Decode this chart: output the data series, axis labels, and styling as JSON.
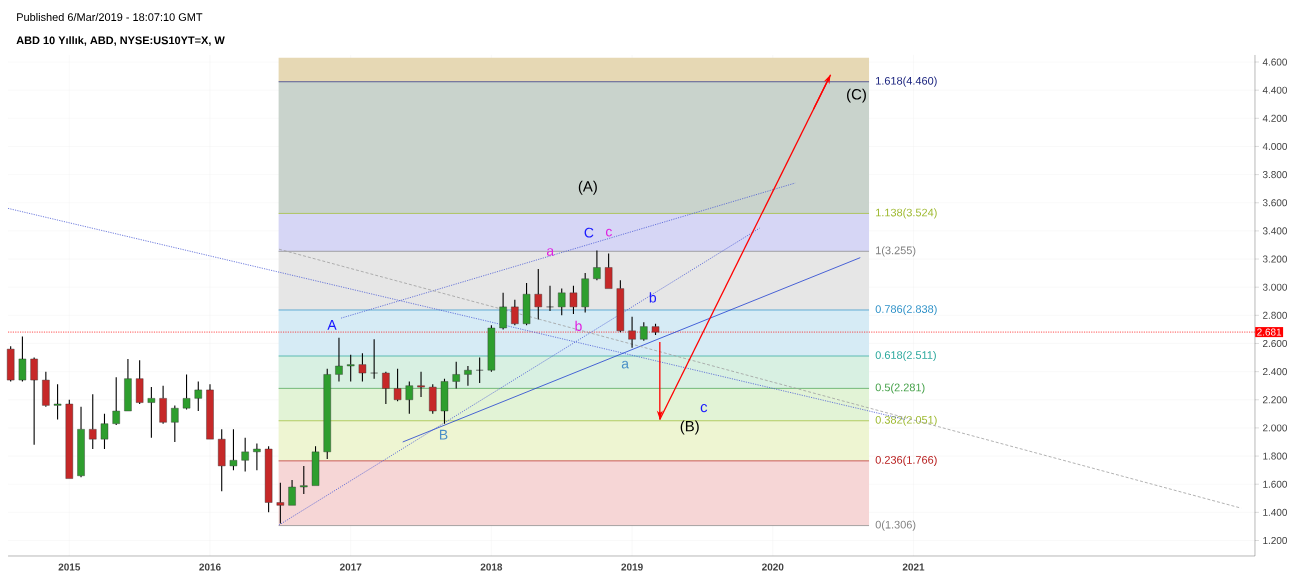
{
  "chart_data": {
    "type": "candlestick",
    "title": "ABD 10 Yıllık, ABD, NYSE:US10YT=X, W",
    "x": [
      "2014-08",
      "2014-09",
      "2014-10",
      "2014-11",
      "2014-12",
      "2015-01",
      "2015-02",
      "2015-03",
      "2015-04",
      "2015-05",
      "2015-06",
      "2015-07",
      "2015-08",
      "2015-09",
      "2015-10",
      "2015-11",
      "2015-12",
      "2016-01",
      "2016-02",
      "2016-03",
      "2016-04",
      "2016-05",
      "2016-06",
      "2016-07",
      "2016-08",
      "2016-09",
      "2016-10",
      "2016-11",
      "2016-12",
      "2017-01",
      "2017-02",
      "2017-03",
      "2017-04",
      "2017-05",
      "2017-06",
      "2017-07",
      "2017-08",
      "2017-09",
      "2017-10",
      "2017-11",
      "2017-12",
      "2018-01",
      "2018-02",
      "2018-03",
      "2018-04",
      "2018-05",
      "2018-06",
      "2018-07",
      "2018-08",
      "2018-09",
      "2018-10",
      "2018-11",
      "2018-12",
      "2019-01",
      "2019-02",
      "2019-03"
    ],
    "ohlc": [
      [
        2.56,
        2.58,
        2.33,
        2.34
      ],
      [
        2.34,
        2.65,
        2.33,
        2.49
      ],
      [
        2.49,
        2.5,
        1.88,
        2.34
      ],
      [
        2.34,
        2.4,
        2.15,
        2.16
      ],
      [
        2.16,
        2.31,
        2.06,
        2.17
      ],
      [
        2.17,
        2.2,
        1.64,
        1.64
      ],
      [
        1.66,
        2.15,
        1.65,
        1.99
      ],
      [
        1.99,
        2.24,
        1.85,
        1.92
      ],
      [
        1.92,
        2.1,
        1.85,
        2.03
      ],
      [
        2.03,
        2.36,
        2.02,
        2.12
      ],
      [
        2.12,
        2.49,
        2.12,
        2.35
      ],
      [
        2.35,
        2.48,
        2.17,
        2.18
      ],
      [
        2.18,
        2.29,
        1.93,
        2.21
      ],
      [
        2.21,
        2.3,
        2.03,
        2.04
      ],
      [
        2.04,
        2.16,
        1.9,
        2.14
      ],
      [
        2.14,
        2.38,
        2.13,
        2.21
      ],
      [
        2.21,
        2.33,
        2.12,
        2.27
      ],
      [
        2.27,
        2.31,
        1.92,
        1.92
      ],
      [
        1.92,
        1.99,
        1.55,
        1.73
      ],
      [
        1.73,
        1.99,
        1.7,
        1.77
      ],
      [
        1.77,
        1.93,
        1.69,
        1.83
      ],
      [
        1.83,
        1.89,
        1.7,
        1.85
      ],
      [
        1.85,
        1.87,
        1.4,
        1.47
      ],
      [
        1.47,
        1.61,
        1.32,
        1.45
      ],
      [
        1.45,
        1.63,
        1.45,
        1.58
      ],
      [
        1.58,
        1.73,
        1.53,
        1.59
      ],
      [
        1.59,
        1.87,
        1.59,
        1.83
      ],
      [
        1.83,
        2.42,
        1.78,
        2.38
      ],
      [
        2.38,
        2.64,
        2.33,
        2.44
      ],
      [
        2.44,
        2.52,
        2.33,
        2.45
      ],
      [
        2.45,
        2.53,
        2.33,
        2.39
      ],
      [
        2.39,
        2.63,
        2.35,
        2.39
      ],
      [
        2.39,
        2.4,
        2.17,
        2.28
      ],
      [
        2.28,
        2.42,
        2.19,
        2.2
      ],
      [
        2.2,
        2.33,
        2.1,
        2.3
      ],
      [
        2.3,
        2.4,
        2.22,
        2.29
      ],
      [
        2.29,
        2.31,
        2.1,
        2.12
      ],
      [
        2.12,
        2.35,
        2.03,
        2.33
      ],
      [
        2.33,
        2.47,
        2.28,
        2.38
      ],
      [
        2.38,
        2.44,
        2.3,
        2.41
      ],
      [
        2.41,
        2.5,
        2.32,
        2.41
      ],
      [
        2.41,
        2.73,
        2.4,
        2.71
      ],
      [
        2.71,
        2.96,
        2.7,
        2.86
      ],
      [
        2.86,
        2.91,
        2.73,
        2.74
      ],
      [
        2.74,
        3.03,
        2.73,
        2.95
      ],
      [
        2.95,
        3.13,
        2.77,
        2.86
      ],
      [
        2.86,
        3.01,
        2.83,
        2.86
      ],
      [
        2.86,
        2.99,
        2.8,
        2.96
      ],
      [
        2.96,
        3.01,
        2.81,
        2.86
      ],
      [
        2.86,
        3.1,
        2.82,
        3.06
      ],
      [
        3.06,
        3.26,
        3.05,
        3.14
      ],
      [
        3.14,
        3.24,
        2.99,
        2.99
      ],
      [
        2.99,
        3.05,
        2.68,
        2.69
      ],
      [
        2.69,
        2.79,
        2.57,
        2.63
      ],
      [
        2.63,
        2.75,
        2.62,
        2.72
      ],
      [
        2.72,
        2.74,
        2.66,
        2.68
      ]
    ],
    "series": [
      {
        "type": "line",
        "x": [
          "2014-07-26",
          "2020-12-09"
        ],
        "values": [
          3.56,
          2.06
        ],
        "color": "#4a5bd4",
        "line_style": "dotted"
      },
      {
        "type": "line",
        "x": [
          "2016-06-28",
          "2019-11-28"
        ],
        "values": [
          1.31,
          3.42
        ],
        "color": "#4a5bd4",
        "line_style": "dotted"
      },
      {
        "type": "line",
        "x": [
          "2016-12-06",
          "2020-02-28"
        ],
        "values": [
          2.78,
          3.74
        ],
        "color": "#4a5bd4",
        "line_style": "dotted"
      },
      {
        "type": "line",
        "x": [
          "2017-05-16",
          "2020-08-15"
        ],
        "values": [
          1.9,
          3.21
        ],
        "color": "#1f3fd0",
        "line_style": "solid"
      },
      {
        "type": "line",
        "x": [
          "2016-06-28",
          "2023-05-01"
        ],
        "values": [
          3.27,
          1.43
        ],
        "color": "#9e9e9e",
        "line_style": "dashed"
      },
      {
        "type": "line",
        "x": [
          "2019-03-14",
          "2019-03-14"
        ],
        "values": [
          2.61,
          2.06
        ],
        "color": "#ff0000",
        "line_style": "solid"
      },
      {
        "type": "line",
        "x": [
          "2019-03-14",
          "2020-05-30"
        ],
        "values": [
          2.06,
          4.51
        ],
        "color": "#ff0000",
        "line_style": "solid"
      }
    ],
    "xlim": [
      "2014-07-26",
      "2023-06-06"
    ],
    "xticks": [
      "2015",
      "2016",
      "2017",
      "2018",
      "2019",
      "2020",
      "2021"
    ],
    "ylim": [
      1.09,
      4.65
    ],
    "yticks": [
      {
        "value": 1.2,
        "label": "1.200"
      },
      {
        "value": 1.4,
        "label": "1.400"
      },
      {
        "value": 1.6,
        "label": "1.600"
      },
      {
        "value": 1.8,
        "label": "1.800"
      },
      {
        "value": 2.0,
        "label": "2.000"
      },
      {
        "value": 2.2,
        "label": "2.200"
      },
      {
        "value": 2.4,
        "label": "2.400"
      },
      {
        "value": 2.6,
        "label": "2.600"
      },
      {
        "value": 2.8,
        "label": "2.800"
      },
      {
        "value": 3.0,
        "label": "3.000"
      },
      {
        "value": 3.2,
        "label": "3.200"
      },
      {
        "value": 3.4,
        "label": "3.400"
      },
      {
        "value": 3.6,
        "label": "3.600"
      },
      {
        "value": 3.8,
        "label": "3.800"
      },
      {
        "value": 4.0,
        "label": "4.000"
      },
      {
        "value": 4.2,
        "label": "4.200"
      },
      {
        "value": 4.4,
        "label": "4.400"
      },
      {
        "value": 4.6,
        "label": "4.600"
      }
    ],
    "grid": true,
    "bands": [
      {
        "axis": "y",
        "from": 1.306,
        "to": 1.766,
        "color": "#f6d6d6"
      },
      {
        "axis": "y",
        "from": 1.766,
        "to": 2.051,
        "color": "#eef5d2"
      },
      {
        "axis": "y",
        "from": 2.051,
        "to": 2.281,
        "color": "#e2f3d6"
      },
      {
        "axis": "y",
        "from": 2.281,
        "to": 2.511,
        "color": "#d8f0e2"
      },
      {
        "axis": "y",
        "from": 2.511,
        "to": 2.838,
        "color": "#d6ebf5"
      },
      {
        "axis": "y",
        "from": 2.838,
        "to": 3.255,
        "color": "#e6e6e6"
      },
      {
        "axis": "y",
        "from": 3.255,
        "to": 3.524,
        "color": "#d6d6f5"
      },
      {
        "axis": "y",
        "from": 3.524,
        "to": 4.46,
        "color": "#c9d3cc"
      },
      {
        "axis": "y",
        "from": 4.46,
        "to": 4.63,
        "color": "#e6d8b4"
      }
    ],
    "ref_lines": [
      {
        "axis": "y",
        "value": 1.306,
        "label": "0(1.306)",
        "color": "#808080"
      },
      {
        "axis": "y",
        "value": 1.766,
        "label": "0.236(1.766)",
        "color": "#b71c1c"
      },
      {
        "axis": "y",
        "value": 2.051,
        "label": "0.382(2.051)",
        "color": "#9cb82c"
      },
      {
        "axis": "y",
        "value": 2.281,
        "label": "0.5(2.281)",
        "color": "#43a047"
      },
      {
        "axis": "y",
        "value": 2.511,
        "label": "0.618(2.511)",
        "color": "#26a69a"
      },
      {
        "axis": "y",
        "value": 2.838,
        "label": "0.786(2.838)",
        "color": "#2a8fc7"
      },
      {
        "axis": "y",
        "value": 3.255,
        "label": "1(3.255)",
        "color": "#808080"
      },
      {
        "axis": "y",
        "value": 3.524,
        "label": "1.138(3.524)",
        "color": "#9cb82c"
      },
      {
        "axis": "y",
        "value": 4.46,
        "label": "1.618(4.460)",
        "color": "#1a237e"
      },
      {
        "axis": "y",
        "value": 2.681,
        "label": "2.681",
        "color": "#ff0000",
        "line_style": "dotted"
      }
    ],
    "annotations": [
      "Published 6/Mar/2019 - 18:07:10 GMT",
      "(A)",
      "c",
      {
        "text": "(B)",
        "x": "2019-03-14",
        "y": 2.06
      },
      {
        "text": "(C)",
        "x": "2020-05-30",
        "y": 4.51
      },
      {
        "text": "A",
        "x": "2016-12",
        "y": 2.64
      },
      {
        "text": "B",
        "x": "2017-09",
        "y": 2.03
      },
      {
        "text": "C",
        "x": "2018-10",
        "y": 3.26
      },
      {
        "text": "a",
        "x": "2018-05",
        "y": 3.13
      },
      {
        "text": "b",
        "x": "2018-08",
        "y": 2.81
      },
      {
        "text": "c",
        "x": "2018-10",
        "y": 3.26
      },
      {
        "text": "b",
        "x": "2019-02",
        "y": 2.75
      },
      {
        "text": "a",
        "x": "2019-01",
        "y": 2.57
      }
    ]
  }
}
